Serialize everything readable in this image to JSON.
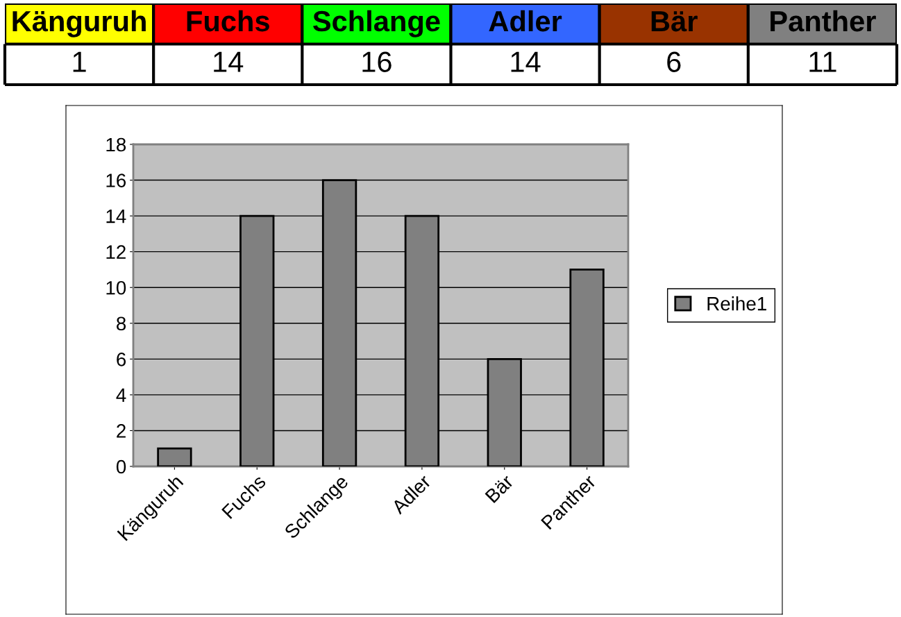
{
  "chart_data": [
    {
      "type": "other",
      "categories": [
        "Känguruh",
        "Fuchs",
        "Schlange",
        "Adler",
        "Bär",
        "Panther"
      ],
      "values": [
        1,
        14,
        16,
        14,
        6,
        11
      ],
      "data_labels": true,
      "colors": [
        "#ffff00",
        "#ff0000",
        "#00ff00",
        "#3366ff",
        "#993300",
        "#808080"
      ]
    },
    {
      "type": "bar",
      "categories": [
        "Känguruh",
        "Fuchs",
        "Schlange",
        "Adler",
        "Bär",
        "Panther"
      ],
      "series": [
        {
          "name": "Reihe1",
          "color": "#808080",
          "values": [
            1,
            14,
            16,
            14,
            6,
            11
          ]
        }
      ],
      "ylim": [
        0,
        18
      ],
      "yticks": [
        0,
        2,
        4,
        6,
        8,
        10,
        12,
        14,
        16,
        18
      ],
      "grid": "y",
      "legend": "right"
    }
  ]
}
